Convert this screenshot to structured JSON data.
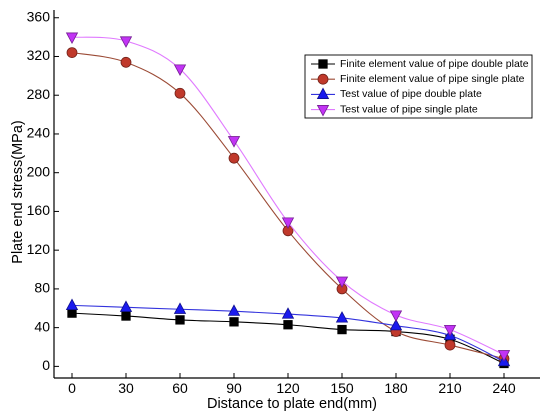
{
  "chart_data": {
    "type": "line",
    "xlabel": "Distance to plate end(mm)",
    "ylabel": "Plate end stress(MPa)",
    "xlim": [
      -10,
      260
    ],
    "ylim": [
      -12,
      368
    ],
    "x_ticks": [
      0,
      30,
      60,
      90,
      120,
      150,
      180,
      210,
      240
    ],
    "y_ticks": [
      0,
      40,
      80,
      120,
      160,
      200,
      240,
      280,
      320,
      360
    ],
    "grid": false,
    "legend_position": "top-right",
    "smooth_lines": true,
    "x": [
      0,
      30,
      60,
      90,
      120,
      150,
      180,
      210,
      240
    ],
    "series": [
      {
        "name": "Finite element value of pipe double plate",
        "marker": "square",
        "color": "#000000",
        "line_color": "#000000",
        "values": [
          55,
          52,
          48,
          46,
          43,
          38,
          36,
          28,
          3
        ]
      },
      {
        "name": "Finite element value of pipe single plate",
        "marker": "circle",
        "color": "#c0392b",
        "line_color": "#9b4a35",
        "values": [
          324,
          314,
          282,
          215,
          140,
          80,
          36,
          22,
          8
        ]
      },
      {
        "name": "Test value of pipe double plate",
        "marker": "triangle-up",
        "color": "#1a1aee",
        "line_color": "#3333dd",
        "values": [
          63,
          61,
          59,
          57,
          54,
          50,
          42,
          32,
          5
        ]
      },
      {
        "name": "Test value of pipe single plate",
        "marker": "triangle-down",
        "color": "#c233f5",
        "line_color": "#e07aff",
        "values": [
          340,
          336,
          307,
          233,
          149,
          88,
          53,
          38,
          12
        ]
      }
    ]
  }
}
